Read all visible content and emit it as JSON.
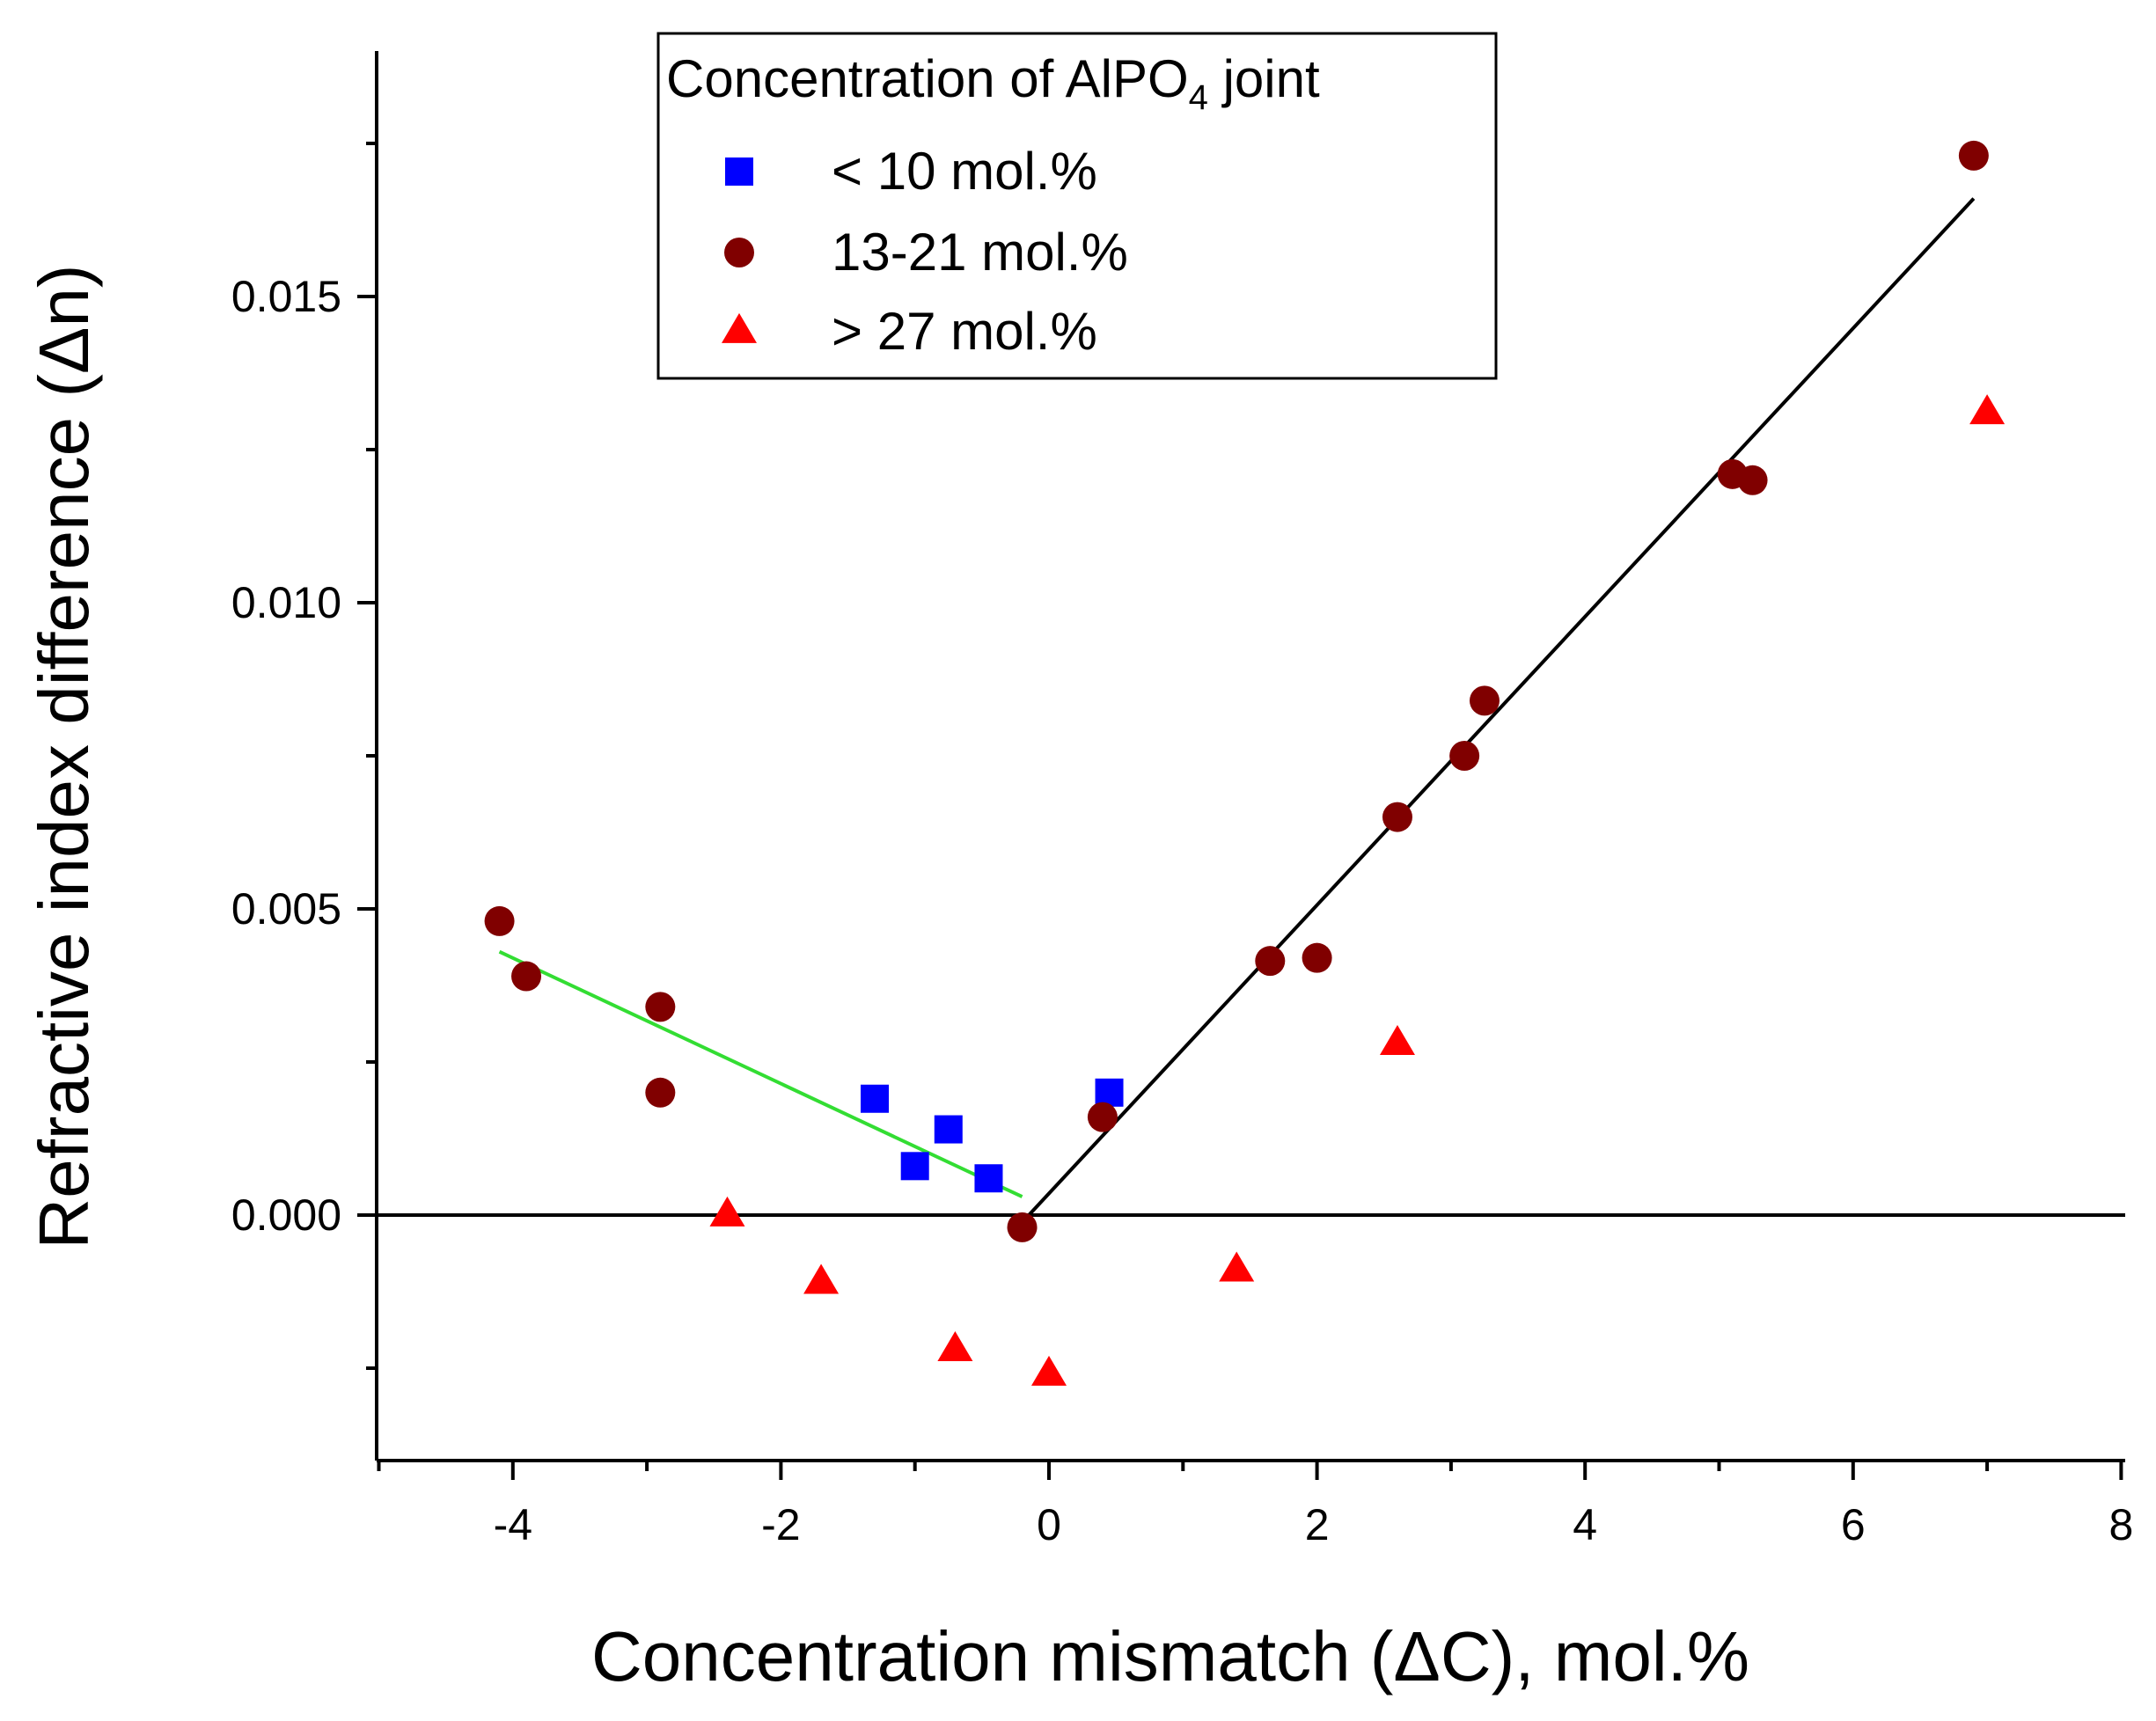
{
  "chart_data": {
    "type": "scatter",
    "xlabel": "Concentration mismatch (ΔC), mol.%",
    "ylabel": "Refractive index difference (Δn)",
    "xlim": [
      -5,
      8
    ],
    "ylim": [
      -0.004,
      0.019
    ],
    "x_ticks": [
      -4,
      -2,
      0,
      2,
      4,
      6,
      8
    ],
    "x_tick_labels": [
      "-4",
      "-2",
      "0",
      "2",
      "4",
      "6",
      "8"
    ],
    "y_ticks": [
      0.0,
      0.005,
      0.01,
      0.015
    ],
    "y_tick_labels": [
      "0.000",
      "0.005",
      "0.010",
      "0.015"
    ],
    "grid": false,
    "legend": {
      "position": "top-left",
      "title_prefix": "Concentration of AlPO",
      "title_sub": "4",
      "title_suffix": " joint"
    },
    "series": [
      {
        "name": "< 10 mol.%",
        "marker": "square",
        "color": "#0000ff",
        "points": [
          [
            -1.3,
            0.0019
          ],
          [
            -1.0,
            0.0008
          ],
          [
            -0.75,
            0.0014
          ],
          [
            -0.45,
            0.0006
          ],
          [
            0.45,
            0.002
          ]
        ]
      },
      {
        "name": "13-21 mol.%",
        "marker": "circle",
        "color": "#800000",
        "points": [
          [
            -4.1,
            0.0048
          ],
          [
            -3.9,
            0.0039
          ],
          [
            -2.9,
            0.0034
          ],
          [
            -2.9,
            0.002
          ],
          [
            -0.2,
            -0.0002
          ],
          [
            0.4,
            0.0016
          ],
          [
            1.65,
            0.00415
          ],
          [
            2.0,
            0.0042
          ],
          [
            2.6,
            0.0065
          ],
          [
            3.1,
            0.0075
          ],
          [
            3.25,
            0.0084
          ],
          [
            5.1,
            0.0121
          ],
          [
            5.25,
            0.012
          ],
          [
            6.9,
            0.0173
          ]
        ]
      },
      {
        "name": "> 27 mol.%",
        "marker": "triangle",
        "color": "#ff0000",
        "points": [
          [
            -2.4,
            0.0
          ],
          [
            -1.7,
            -0.0011
          ],
          [
            -0.7,
            -0.0022
          ],
          [
            0.0,
            -0.0026
          ],
          [
            1.4,
            -0.0009
          ],
          [
            2.6,
            0.0028
          ],
          [
            7.0,
            0.0131
          ]
        ]
      }
    ],
    "fit_lines": [
      {
        "name": "fit-left",
        "color": "#33dd33",
        "from": [
          -4.1,
          0.0043
        ],
        "to": [
          -0.2,
          0.0003
        ]
      },
      {
        "name": "fit-right",
        "color": "#000000",
        "from": [
          -0.15,
          0.0
        ],
        "to": [
          6.9,
          0.0166
        ]
      }
    ],
    "reference_line": {
      "y": 0.0,
      "color": "#000000"
    }
  }
}
